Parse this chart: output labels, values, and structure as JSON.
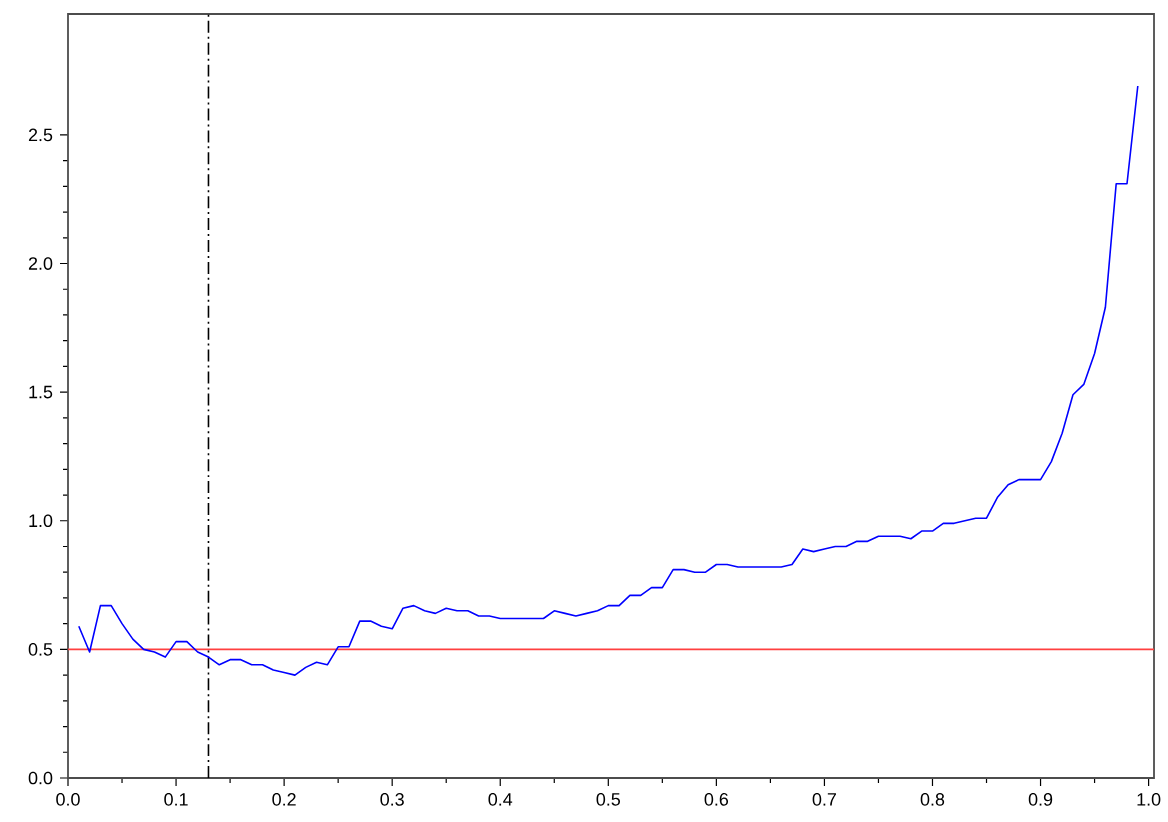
{
  "chart_data": {
    "type": "line",
    "x": [
      0.01,
      0.02,
      0.03,
      0.04,
      0.05,
      0.06,
      0.07,
      0.08,
      0.09,
      0.1,
      0.11,
      0.12,
      0.13,
      0.14,
      0.15,
      0.16,
      0.17,
      0.18,
      0.19,
      0.2,
      0.21,
      0.22,
      0.23,
      0.24,
      0.25,
      0.26,
      0.27,
      0.28,
      0.29,
      0.3,
      0.31,
      0.32,
      0.33,
      0.34,
      0.35,
      0.36,
      0.37,
      0.38,
      0.39,
      0.4,
      0.41,
      0.42,
      0.43,
      0.44,
      0.45,
      0.46,
      0.47,
      0.48,
      0.49,
      0.5,
      0.51,
      0.52,
      0.53,
      0.54,
      0.55,
      0.56,
      0.57,
      0.58,
      0.59,
      0.6,
      0.61,
      0.62,
      0.63,
      0.64,
      0.65,
      0.66,
      0.67,
      0.68,
      0.69,
      0.7,
      0.71,
      0.72,
      0.73,
      0.74,
      0.75,
      0.76,
      0.77,
      0.78,
      0.79,
      0.8,
      0.81,
      0.82,
      0.83,
      0.84,
      0.85,
      0.86,
      0.87,
      0.88,
      0.89,
      0.9,
      0.91,
      0.92,
      0.93,
      0.94,
      0.95,
      0.96,
      0.97,
      0.98,
      0.99
    ],
    "series": [
      {
        "color": "#0000ff",
        "values": [
          0.59,
          0.49,
          0.67,
          0.67,
          0.6,
          0.54,
          0.5,
          0.49,
          0.47,
          0.53,
          0.53,
          0.49,
          0.47,
          0.44,
          0.46,
          0.46,
          0.44,
          0.44,
          0.42,
          0.41,
          0.4,
          0.43,
          0.45,
          0.44,
          0.51,
          0.51,
          0.61,
          0.61,
          0.59,
          0.58,
          0.66,
          0.67,
          0.65,
          0.64,
          0.66,
          0.65,
          0.65,
          0.63,
          0.63,
          0.62,
          0.62,
          0.62,
          0.62,
          0.62,
          0.65,
          0.64,
          0.63,
          0.64,
          0.65,
          0.67,
          0.67,
          0.71,
          0.71,
          0.74,
          0.74,
          0.81,
          0.81,
          0.8,
          0.8,
          0.83,
          0.83,
          0.82,
          0.82,
          0.82,
          0.82,
          0.82,
          0.83,
          0.89,
          0.88,
          0.89,
          0.9,
          0.9,
          0.92,
          0.92,
          0.94,
          0.94,
          0.94,
          0.93,
          0.96,
          0.96,
          0.99,
          0.99,
          1.0,
          1.01,
          1.01,
          1.09,
          1.14,
          1.16,
          1.16,
          1.16,
          1.23,
          1.34,
          1.49,
          1.53,
          1.65,
          1.83,
          2.31,
          2.31,
          2.69
        ]
      }
    ],
    "xlim": [
      0,
      1.005
    ],
    "ylim": [
      0,
      2.97
    ],
    "xticks": [
      {
        "value": 0,
        "label": "0.0"
      },
      0.1,
      0.2,
      0.3,
      0.4,
      0.5,
      0.6,
      0.7,
      0.8,
      0.9,
      {
        "value": 1,
        "label": "1.0"
      }
    ],
    "yticks": [
      {
        "value": 0,
        "label": "0.0"
      },
      0.5,
      {
        "value": 1,
        "label": "1.0"
      },
      1.5,
      {
        "value": 2,
        "label": "2.0"
      },
      2.5
    ],
    "ref_lines": [
      {
        "axis": "y",
        "value": 0.5,
        "color": "#ff4040",
        "line_style": "solid"
      },
      {
        "axis": "x",
        "value": 0.13,
        "color": "#000000",
        "line_style": "dashdot"
      }
    ],
    "grid": false,
    "legend": false
  }
}
